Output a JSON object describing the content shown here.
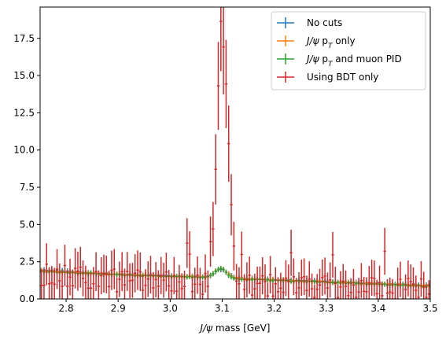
{
  "chart_data": {
    "type": "line",
    "style": "histogram-with-error-bars",
    "xlabel": "J/ψ mass [GeV]",
    "ylabel": "",
    "xlim": [
      2.75,
      3.5
    ],
    "ylim": [
      0,
      19.6
    ],
    "xticks": [
      "2.8",
      "2.9",
      "3.0",
      "3.1",
      "3.2",
      "3.3",
      "3.4",
      "3.5"
    ],
    "yticks": [
      "0.0",
      "2.5",
      "5.0",
      "7.5",
      "10.0",
      "12.5",
      "15.0",
      "17.5"
    ],
    "grid": false,
    "legend_position": "top-right",
    "bins": {
      "start": 2.75,
      "end": 3.5,
      "count": 150
    },
    "series": [
      {
        "name": "No cuts",
        "color": "#1f77b4",
        "shape": "smooth",
        "anchors": [
          [
            2.75,
            1.95
          ],
          [
            2.85,
            1.75
          ],
          [
            2.95,
            1.6
          ],
          [
            3.05,
            1.5
          ],
          [
            3.2,
            1.3
          ],
          [
            3.35,
            1.1
          ],
          [
            3.5,
            0.9
          ]
        ],
        "peak": {
          "center": 3.097,
          "width": 0.012,
          "height": 0.55
        },
        "error": 0.18
      },
      {
        "name": "J/ψ p_T only",
        "color": "#ff7f0e",
        "shape": "smooth",
        "anchors": [
          [
            2.75,
            1.9
          ],
          [
            2.85,
            1.72
          ],
          [
            2.95,
            1.58
          ],
          [
            3.05,
            1.48
          ],
          [
            3.2,
            1.28
          ],
          [
            3.35,
            1.08
          ],
          [
            3.5,
            0.88
          ]
        ],
        "peak": {
          "center": 3.097,
          "width": 0.012,
          "height": 0.6
        },
        "error": 0.17
      },
      {
        "name": "J/ψ p_T and muon PID",
        "color": "#2ca02c",
        "shape": "smooth",
        "anchors": [
          [
            2.75,
            1.85
          ],
          [
            2.85,
            1.7
          ],
          [
            2.95,
            1.55
          ],
          [
            3.05,
            1.45
          ],
          [
            3.2,
            1.25
          ],
          [
            3.35,
            1.05
          ],
          [
            3.5,
            0.85
          ]
        ],
        "peak": {
          "center": 3.097,
          "width": 0.011,
          "height": 0.65
        },
        "error": 0.16
      },
      {
        "name": "Using BDT only",
        "color": "#d62728",
        "shape": "noisy",
        "anchors": [
          [
            2.75,
            1.5
          ],
          [
            2.9,
            1.25
          ],
          [
            3.05,
            1.0
          ],
          [
            3.2,
            0.85
          ],
          [
            3.35,
            0.75
          ],
          [
            3.5,
            0.65
          ]
        ],
        "peak": {
          "center": 3.1,
          "width": 0.011,
          "height": 15.5
        },
        "fluctuation": 1.1,
        "error_scale": 0.75
      }
    ]
  }
}
